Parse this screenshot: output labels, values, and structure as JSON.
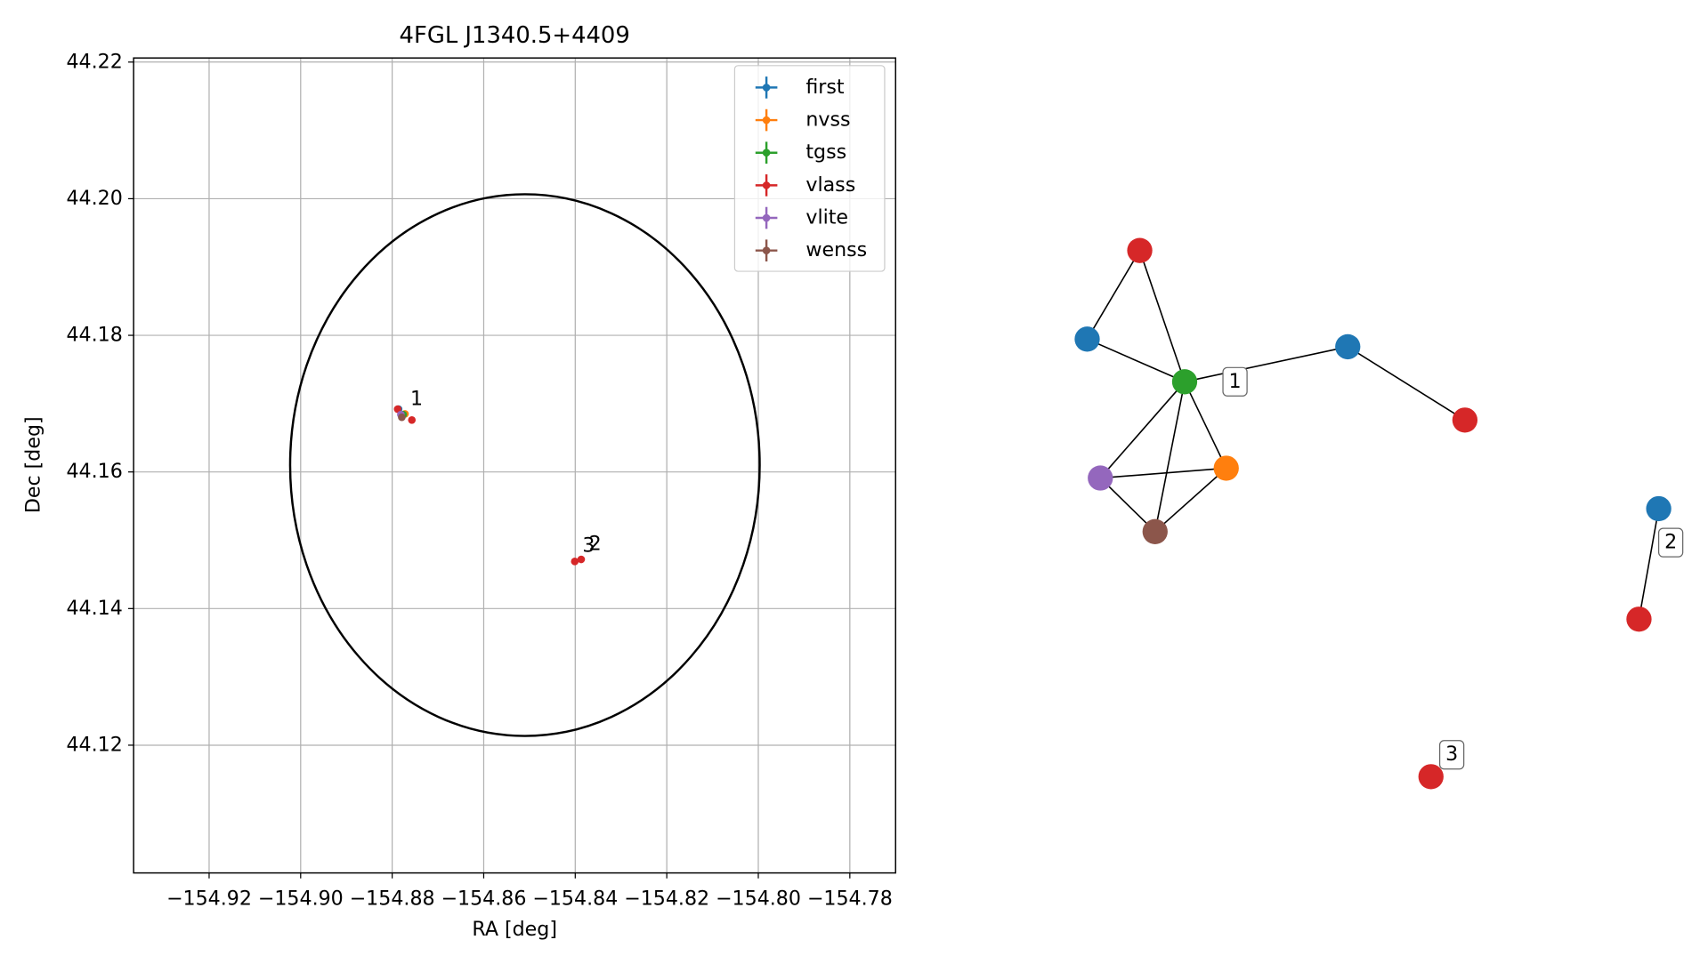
{
  "chart_data": [
    {
      "type": "scatter",
      "title": "4FGL J1340.5+4409",
      "x_label": "RA [deg]",
      "y_label": "Dec [deg]",
      "xlim": [
        -154.9365,
        -154.77
      ],
      "ylim": [
        44.1013,
        44.2206
      ],
      "xticks": [
        {
          "value": -154.92,
          "label": "−154.92"
        },
        {
          "value": -154.9,
          "label": "−154.90"
        },
        {
          "value": -154.88,
          "label": "−154.88"
        },
        {
          "value": -154.86,
          "label": "−154.86"
        },
        {
          "value": -154.84,
          "label": "−154.84"
        },
        {
          "value": -154.82,
          "label": "−154.82"
        },
        {
          "value": -154.8,
          "label": "−154.80"
        },
        {
          "value": -154.78,
          "label": "−154.78"
        }
      ],
      "yticks": [
        44.12,
        44.14,
        44.16,
        44.18,
        {
          "value": 44.2,
          "label": "44.20"
        },
        44.22
      ],
      "grid": true,
      "legend": "upper right",
      "ellipse": {
        "center_x": -154.851,
        "center_y": 44.161,
        "width": 0.1026,
        "height": 0.0793,
        "color": "#000000"
      },
      "series": [
        {
          "name": "first",
          "color": "#1f77b4",
          "x": [
            -154.8786
          ],
          "y": [
            44.1692
          ]
        },
        {
          "name": "nvss",
          "color": "#ff7f0e",
          "x": [
            -154.8772
          ],
          "y": [
            44.1685
          ]
        },
        {
          "name": "tgss",
          "color": "#2ca02c",
          "x": [
            -154.8776
          ],
          "y": [
            44.1684
          ]
        },
        {
          "name": "vlass",
          "color": "#d62728",
          "x": [
            -154.8788,
            -154.8757,
            -154.8387,
            -154.8401
          ],
          "y": [
            44.1692,
            44.1676,
            44.1472,
            44.1469
          ]
        },
        {
          "name": "vlite",
          "color": "#9467bd",
          "x": [
            -154.8781
          ],
          "y": [
            44.1684
          ]
        },
        {
          "name": "wenss",
          "color": "#8c564b",
          "x": [
            -154.8779
          ],
          "y": [
            44.168
          ]
        }
      ],
      "annotations": [
        {
          "text": "1",
          "x": -154.8777,
          "y": 44.1684
        },
        {
          "text": "2",
          "x": -154.8387,
          "y": 44.1472
        },
        {
          "text": "3",
          "x": -154.8401,
          "y": 44.1469
        }
      ]
    },
    {
      "type": "network",
      "nodes": [
        {
          "color": "#d62728"
        },
        {
          "color": "#1f77b4"
        },
        {
          "color": "#2ca02c"
        },
        {
          "color": "#1f77b4"
        },
        {
          "color": "#d62728"
        },
        {
          "color": "#9467bd"
        },
        {
          "color": "#ff7f0e"
        },
        {
          "color": "#8c564b"
        },
        {
          "color": "#1f77b4"
        },
        {
          "color": "#d62728"
        },
        {
          "color": "#d62728"
        }
      ],
      "edges": [
        [
          0,
          1
        ],
        [
          0,
          2
        ],
        [
          1,
          2
        ],
        [
          2,
          3
        ],
        [
          3,
          4
        ],
        [
          2,
          5
        ],
        [
          2,
          6
        ],
        [
          2,
          7
        ],
        [
          5,
          6
        ],
        [
          5,
          7
        ],
        [
          6,
          7
        ],
        [
          8,
          9
        ]
      ],
      "labels": [
        {
          "text": "1",
          "node": 2
        },
        {
          "text": "2",
          "node": 8
        },
        {
          "text": "3",
          "node": 10
        }
      ]
    }
  ]
}
